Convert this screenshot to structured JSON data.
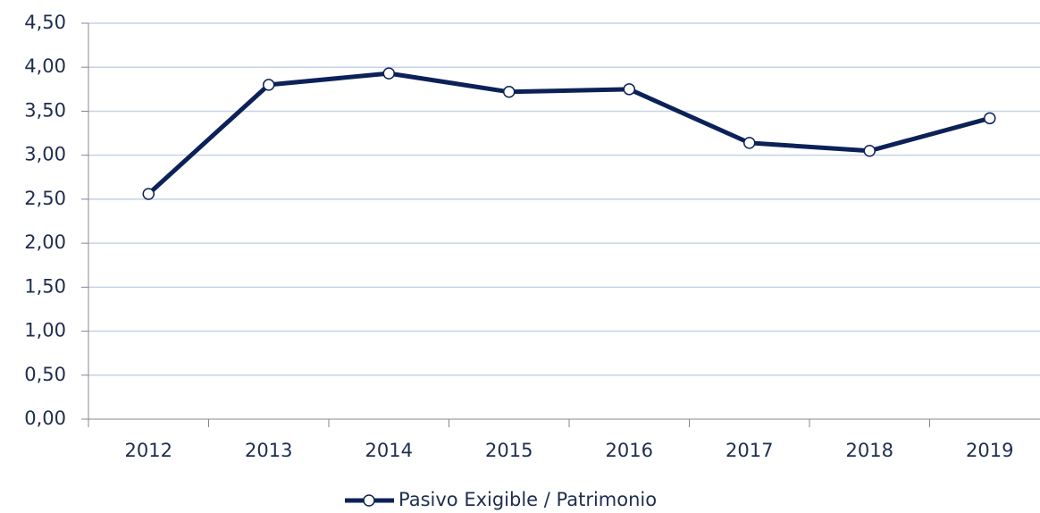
{
  "chart_data": {
    "type": "line",
    "categories": [
      "2012",
      "2013",
      "2014",
      "2015",
      "2016",
      "2017",
      "2018",
      "2019"
    ],
    "series": [
      {
        "name": "Pasivo Exigible / Patrimonio",
        "color": "#0c2158",
        "values": [
          2.56,
          3.8,
          3.93,
          3.72,
          3.75,
          3.14,
          3.05,
          3.42
        ]
      }
    ],
    "ylim": [
      0,
      4.5
    ],
    "yticks": [
      {
        "value": 0,
        "label": "0,00"
      },
      {
        "value": 0.5,
        "label": "0,50"
      },
      {
        "value": 1,
        "label": "1,00"
      },
      {
        "value": 1.5,
        "label": "1,50"
      },
      {
        "value": 2,
        "label": "2,00"
      },
      {
        "value": 2.5,
        "label": "2,50"
      },
      {
        "value": 3,
        "label": "3,00"
      },
      {
        "value": 3.5,
        "label": "3,50"
      },
      {
        "value": 4,
        "label": "4,00"
      },
      {
        "value": 4.5,
        "label": "4,50"
      }
    ],
    "grid": true,
    "legend": "bottom"
  }
}
